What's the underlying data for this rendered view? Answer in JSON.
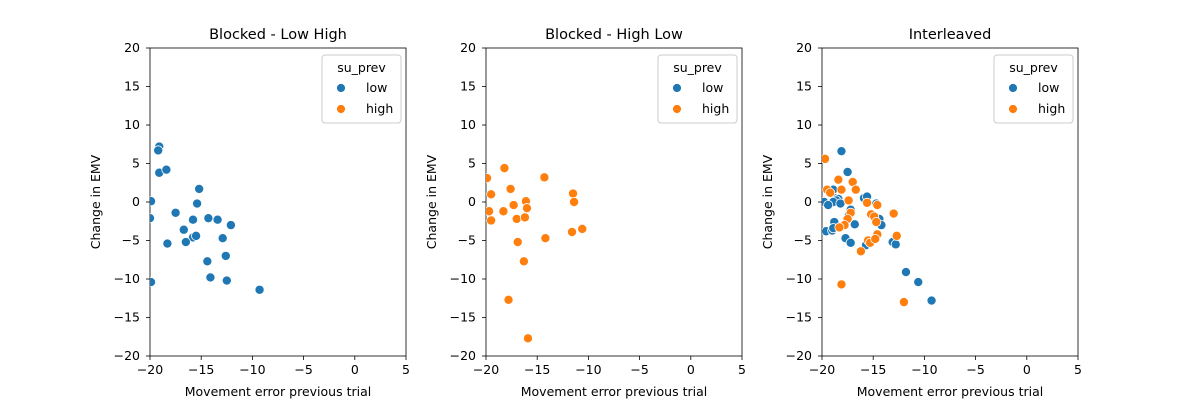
{
  "chart_data": [
    {
      "type": "scatter",
      "title": "Blocked - Low High",
      "xlabel": "Movement error previous trial",
      "ylabel": "Change in EMV",
      "xlim": [
        -20,
        5
      ],
      "ylim": [
        -20,
        20
      ],
      "xticks": [
        "−20",
        "−15",
        "−10",
        "−5",
        "0",
        "5"
      ],
      "yticks": [
        "20",
        "15",
        "10",
        "5",
        "0",
        "−5",
        "−10",
        "−15",
        "−20"
      ],
      "grid": false,
      "legend": {
        "title": "su_prev",
        "entries": [
          "low",
          "high"
        ],
        "placement": "top-right"
      },
      "series": [
        {
          "name": "low",
          "color": "#1f77b4",
          "points": [
            [
              -19.1,
              7.2
            ],
            [
              -19.2,
              6.7
            ],
            [
              -19.1,
              3.8
            ],
            [
              -18.4,
              4.2
            ],
            [
              -15.2,
              1.7
            ],
            [
              -19.9,
              0.1
            ],
            [
              -15.4,
              -0.2
            ],
            [
              -20.0,
              -2.1
            ],
            [
              -17.5,
              -1.4
            ],
            [
              -15.8,
              -2.3
            ],
            [
              -14.3,
              -2.1
            ],
            [
              -13.4,
              -2.3
            ],
            [
              -12.1,
              -3.0
            ],
            [
              -16.7,
              -3.6
            ],
            [
              -15.8,
              -4.6
            ],
            [
              -15.5,
              -4.4
            ],
            [
              -12.9,
              -4.7
            ],
            [
              -18.3,
              -5.4
            ],
            [
              -16.5,
              -5.2
            ],
            [
              -12.6,
              -7.0
            ],
            [
              -14.4,
              -7.7
            ],
            [
              -14.1,
              -9.8
            ],
            [
              -12.5,
              -10.2
            ],
            [
              -9.3,
              -11.4
            ],
            [
              -19.9,
              -10.4
            ]
          ]
        },
        {
          "name": "high",
          "color": "#ff7f0e",
          "points": []
        }
      ]
    },
    {
      "type": "scatter",
      "title": "Blocked - High Low",
      "xlabel": "Movement error previous trial",
      "ylabel": "Change in EMV",
      "xlim": [
        -20,
        5
      ],
      "ylim": [
        -20,
        20
      ],
      "xticks": [
        "−20",
        "−15",
        "−10",
        "−5",
        "0",
        "5"
      ],
      "yticks": [
        "20",
        "15",
        "10",
        "5",
        "0",
        "−5",
        "−10",
        "−15",
        "−20"
      ],
      "grid": false,
      "legend": {
        "title": "su_prev",
        "entries": [
          "low",
          "high"
        ],
        "placement": "top-right"
      },
      "series": [
        {
          "name": "low",
          "color": "#1f77b4",
          "points": []
        },
        {
          "name": "high",
          "color": "#ff7f0e",
          "points": [
            [
              -19.9,
              3.1
            ],
            [
              -18.2,
              4.4
            ],
            [
              -19.5,
              1.0
            ],
            [
              -17.6,
              1.7
            ],
            [
              -14.3,
              3.2
            ],
            [
              -11.5,
              1.1
            ],
            [
              -11.4,
              0.0
            ],
            [
              -16.1,
              0.1
            ],
            [
              -17.3,
              -0.4
            ],
            [
              -16.0,
              -0.8
            ],
            [
              -19.7,
              -1.2
            ],
            [
              -18.3,
              -1.2
            ],
            [
              -19.5,
              -2.4
            ],
            [
              -17.0,
              -2.2
            ],
            [
              -16.2,
              -2.0
            ],
            [
              -16.9,
              -5.2
            ],
            [
              -14.2,
              -4.7
            ],
            [
              -11.6,
              -3.9
            ],
            [
              -10.6,
              -3.5
            ],
            [
              -16.3,
              -7.7
            ],
            [
              -17.8,
              -12.7
            ],
            [
              -15.9,
              -17.7
            ]
          ]
        }
      ]
    },
    {
      "type": "scatter",
      "title": "Interleaved",
      "xlabel": "Movement error previous trial",
      "ylabel": "Change in EMV",
      "xlim": [
        -20,
        5
      ],
      "ylim": [
        -20,
        20
      ],
      "xticks": [
        "−20",
        "−15",
        "−10",
        "−5",
        "0",
        "5"
      ],
      "yticks": [
        "20",
        "15",
        "10",
        "5",
        "0",
        "−5",
        "−10",
        "−15",
        "−20"
      ],
      "grid": false,
      "legend": {
        "title": "su_prev",
        "entries": [
          "low",
          "high"
        ],
        "placement": "top-right"
      },
      "series": [
        {
          "name": "low",
          "color": "#1f77b4",
          "points": [
            [
              -18.1,
              6.6
            ],
            [
              -17.5,
              3.9
            ],
            [
              -18.9,
              1.6
            ],
            [
              -18.7,
              0.5
            ],
            [
              -18.4,
              0.4
            ],
            [
              -18.6,
              0.2
            ],
            [
              -18.9,
              0.0
            ],
            [
              -19.8,
              0.0
            ],
            [
              -19.4,
              -0.4
            ],
            [
              -18.2,
              -0.2
            ],
            [
              -15.9,
              0.5
            ],
            [
              -15.6,
              0.7
            ],
            [
              -14.7,
              -0.2
            ],
            [
              -17.2,
              -1.0
            ],
            [
              -17.4,
              -1.8
            ],
            [
              -18.8,
              -2.6
            ],
            [
              -16.8,
              -2.9
            ],
            [
              -19.6,
              -3.8
            ],
            [
              -19.0,
              -3.7
            ],
            [
              -18.9,
              -3.4
            ],
            [
              -14.4,
              -2.2
            ],
            [
              -14.2,
              -3.0
            ],
            [
              -17.7,
              -4.7
            ],
            [
              -17.2,
              -5.3
            ],
            [
              -15.7,
              -5.6
            ],
            [
              -13.1,
              -5.2
            ],
            [
              -12.8,
              -5.5
            ],
            [
              -11.8,
              -9.1
            ],
            [
              -10.6,
              -10.4
            ],
            [
              -9.3,
              -12.8
            ]
          ]
        },
        {
          "name": "high",
          "color": "#ff7f0e",
          "points": [
            [
              -19.7,
              5.6
            ],
            [
              -18.4,
              2.9
            ],
            [
              -19.5,
              1.6
            ],
            [
              -18.1,
              1.6
            ],
            [
              -17.0,
              2.6
            ],
            [
              -19.2,
              1.2
            ],
            [
              -17.4,
              0.2
            ],
            [
              -16.7,
              1.6
            ],
            [
              -15.6,
              -0.1
            ],
            [
              -14.6,
              -0.4
            ],
            [
              -17.2,
              -1.4
            ],
            [
              -17.5,
              -2.2
            ],
            [
              -15.2,
              -1.6
            ],
            [
              -14.9,
              -1.9
            ],
            [
              -13.0,
              -1.5
            ],
            [
              -14.7,
              -2.6
            ],
            [
              -17.8,
              -3.0
            ],
            [
              -18.3,
              -3.3
            ],
            [
              -14.6,
              -4.2
            ],
            [
              -12.7,
              -4.4
            ],
            [
              -15.5,
              -5.0
            ],
            [
              -15.3,
              -5.3
            ],
            [
              -14.8,
              -4.8
            ],
            [
              -16.2,
              -6.4
            ],
            [
              -18.1,
              -10.7
            ],
            [
              -12.0,
              -13.0
            ]
          ]
        }
      ]
    }
  ]
}
